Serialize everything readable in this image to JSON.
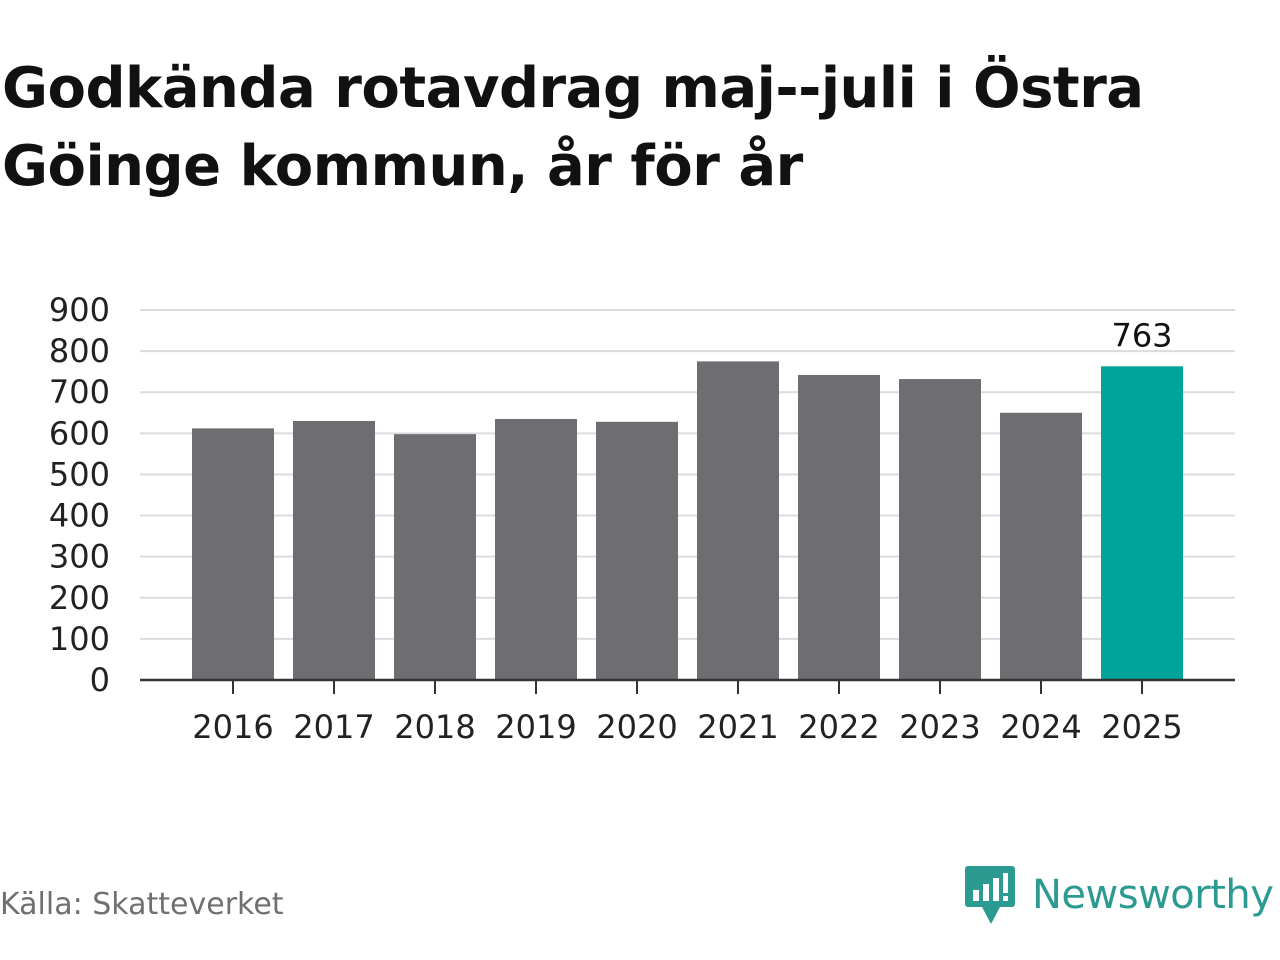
{
  "chart_data": {
    "type": "bar",
    "title": "Godkända rotavdrag maj--juli i Östra Göinge kommun, år för år",
    "xlabel": "",
    "ylabel": "",
    "categories": [
      "2016",
      "2017",
      "2018",
      "2019",
      "2020",
      "2021",
      "2022",
      "2023",
      "2024",
      "2025"
    ],
    "values": [
      612,
      630,
      598,
      635,
      628,
      775,
      742,
      732,
      650,
      763
    ],
    "ylim": [
      0,
      900
    ],
    "yticks": [
      0,
      100,
      200,
      300,
      400,
      500,
      600,
      700,
      800,
      900
    ],
    "data_labels": [
      {
        "category": "2025",
        "text": "763"
      }
    ],
    "highlight_category": "2025",
    "grid": true,
    "legend": "none",
    "colors": {
      "bar": "#6e6d72",
      "highlight": "#00a499",
      "grid": "#dcdcdc",
      "axis": "#333333",
      "tick_text": "#222222",
      "title": "#111111"
    }
  },
  "footer": {
    "source": "Källa: Skatteverket",
    "brand": "Newsworthy",
    "brand_icon": "newsworthy-logo-icon",
    "brand_color": "#2b9a91"
  }
}
